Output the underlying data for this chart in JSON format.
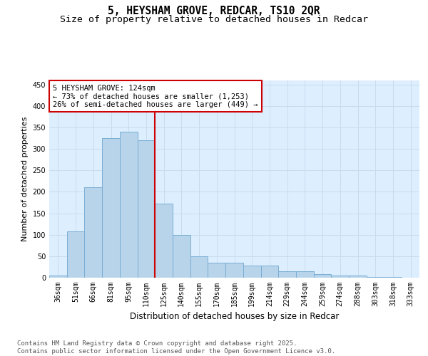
{
  "title_line1": "5, HEYSHAM GROVE, REDCAR, TS10 2QR",
  "title_line2": "Size of property relative to detached houses in Redcar",
  "xlabel": "Distribution of detached houses by size in Redcar",
  "ylabel": "Number of detached properties",
  "categories": [
    "36sqm",
    "51sqm",
    "66sqm",
    "81sqm",
    "95sqm",
    "110sqm",
    "125sqm",
    "140sqm",
    "155sqm",
    "170sqm",
    "185sqm",
    "199sqm",
    "214sqm",
    "229sqm",
    "244sqm",
    "259sqm",
    "274sqm",
    "288sqm",
    "303sqm",
    "318sqm",
    "333sqm"
  ],
  "values": [
    5,
    107,
    211,
    325,
    340,
    320,
    172,
    100,
    50,
    35,
    35,
    29,
    29,
    15,
    15,
    8,
    5,
    5,
    1,
    1,
    0
  ],
  "bar_color": "#b8d4ea",
  "bar_edge_color": "#7aadd4",
  "vline_bar_index": 6,
  "vline_color": "#cc0000",
  "annotation_text": "5 HEYSHAM GROVE: 124sqm\n← 73% of detached houses are smaller (1,253)\n26% of semi-detached houses are larger (449) →",
  "annotation_box_facecolor": "#ffffff",
  "annotation_box_edgecolor": "#cc0000",
  "ylim": [
    0,
    460
  ],
  "yticks": [
    0,
    50,
    100,
    150,
    200,
    250,
    300,
    350,
    400,
    450
  ],
  "grid_color": "#c8dced",
  "background_color": "#ddeeff",
  "footer_text": "Contains HM Land Registry data © Crown copyright and database right 2025.\nContains public sector information licensed under the Open Government Licence v3.0.",
  "title_fontsize": 10.5,
  "subtitle_fontsize": 9.5,
  "ylabel_fontsize": 8,
  "xlabel_fontsize": 8.5,
  "tick_fontsize": 7,
  "annotation_fontsize": 7.5,
  "footer_fontsize": 6.5
}
